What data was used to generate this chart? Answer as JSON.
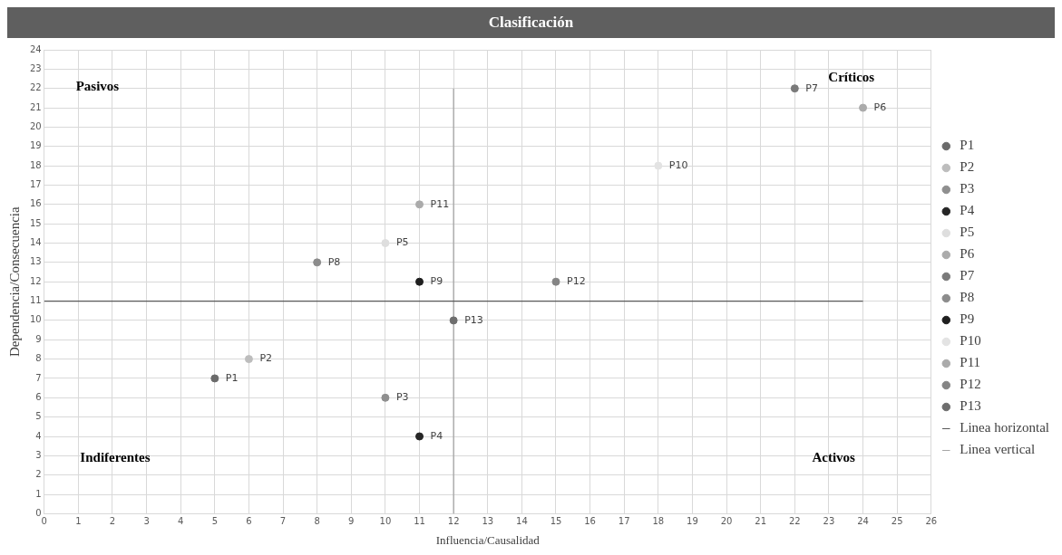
{
  "chart_data": {
    "type": "scatter",
    "title": "Clasificación",
    "xlabel": "Influencia/Causalidad",
    "ylabel": "Dependencia/Consecuencia",
    "xlim": [
      0,
      26
    ],
    "xticks": [
      0,
      1,
      2,
      3,
      4,
      5,
      6,
      7,
      8,
      9,
      10,
      11,
      12,
      13,
      14,
      15,
      16,
      17,
      18,
      19,
      20,
      21,
      22,
      23,
      24,
      25,
      26
    ],
    "ylim": [
      0,
      24
    ],
    "yticks": [
      0,
      1,
      2,
      3,
      4,
      5,
      6,
      7,
      8,
      9,
      10,
      11,
      12,
      13,
      14,
      15,
      16,
      17,
      18,
      19,
      20,
      21,
      22,
      23,
      24
    ],
    "grid": true,
    "legend": "right",
    "marker": "circle",
    "series": [
      {
        "name": "P1",
        "color": "#6b6b6b",
        "x": [
          5
        ],
        "values": [
          7
        ]
      },
      {
        "name": "P2",
        "color": "#bdbdbd",
        "x": [
          6
        ],
        "values": [
          8
        ]
      },
      {
        "name": "P3",
        "color": "#8f8f8f",
        "x": [
          10
        ],
        "values": [
          6
        ]
      },
      {
        "name": "P4",
        "color": "#262626",
        "x": [
          11
        ],
        "values": [
          4
        ]
      },
      {
        "name": "P5",
        "color": "#dedede",
        "x": [
          10
        ],
        "values": [
          14
        ]
      },
      {
        "name": "P6",
        "color": "#ababab",
        "x": [
          24
        ],
        "values": [
          21
        ]
      },
      {
        "name": "P7",
        "color": "#7a7a7a",
        "x": [
          22
        ],
        "values": [
          22
        ]
      },
      {
        "name": "P8",
        "color": "#8c8c8c",
        "x": [
          8
        ],
        "values": [
          13
        ]
      },
      {
        "name": "P9",
        "color": "#1f1f1f",
        "x": [
          11
        ],
        "values": [
          12
        ]
      },
      {
        "name": "P10",
        "color": "#e3e3e3",
        "x": [
          18
        ],
        "values": [
          18
        ]
      },
      {
        "name": "P11",
        "color": "#ababab",
        "x": [
          11
        ],
        "values": [
          16
        ]
      },
      {
        "name": "P12",
        "color": "#858585",
        "x": [
          15
        ],
        "values": [
          12
        ]
      },
      {
        "name": "P13",
        "color": "#6e6e6e",
        "x": [
          12
        ],
        "values": [
          10
        ]
      },
      {
        "name": "Linea horizontal",
        "type": "line",
        "marker": "none",
        "color": "#595959",
        "x": [
          0,
          24
        ],
        "values": [
          11,
          11
        ]
      },
      {
        "name": "Linea vertical",
        "type": "line",
        "marker": "none",
        "color": "#a6a6a6",
        "x": [
          12,
          12
        ],
        "values": [
          0,
          22
        ]
      }
    ],
    "annotations": [
      "Pasivos",
      "Críticos",
      "Indiferentes",
      "Activos"
    ]
  }
}
